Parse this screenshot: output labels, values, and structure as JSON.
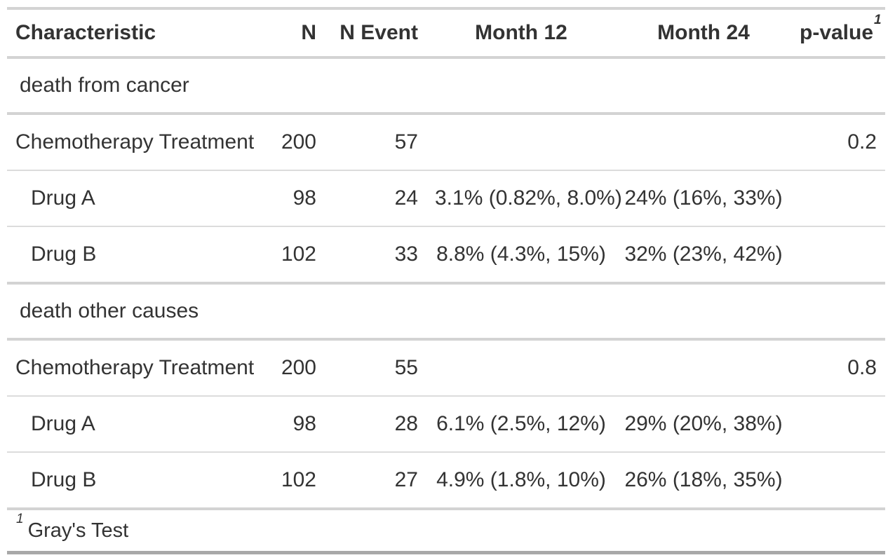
{
  "table": {
    "columns": {
      "characteristic": "Characteristic",
      "n": "N",
      "n_event": "N Event",
      "month12": "Month 12",
      "month24": "Month 24",
      "p_value": "p-value",
      "p_value_footnote_mark": "1"
    },
    "rows": [
      {
        "type": "group",
        "label": "death from cancer"
      },
      {
        "type": "level1",
        "label": "Chemotherapy Treatment",
        "n": "200",
        "n_event": "57",
        "month12": "",
        "month24": "",
        "p": "0.2"
      },
      {
        "type": "level2",
        "label": "Drug A",
        "n": "98",
        "n_event": "24",
        "month12": "3.1% (0.82%, 8.0%)",
        "month24": "24% (16%, 33%)",
        "p": ""
      },
      {
        "type": "level2",
        "label": "Drug B",
        "n": "102",
        "n_event": "33",
        "month12": "8.8% (4.3%, 15%)",
        "month24": "32% (23%, 42%)",
        "p": ""
      },
      {
        "type": "group",
        "label": "death other causes"
      },
      {
        "type": "level1",
        "label": "Chemotherapy Treatment",
        "n": "200",
        "n_event": "55",
        "month12": "",
        "month24": "",
        "p": "0.8"
      },
      {
        "type": "level2",
        "label": "Drug A",
        "n": "98",
        "n_event": "28",
        "month12": "6.1% (2.5%, 12%)",
        "month24": "29% (20%, 38%)",
        "p": ""
      },
      {
        "type": "level2",
        "label": "Drug B",
        "n": "102",
        "n_event": "27",
        "month12": "4.9% (1.8%, 10%)",
        "month24": "26% (18%, 35%)",
        "p": ""
      }
    ],
    "footnote": {
      "mark": "1",
      "text": "Gray's Test"
    }
  },
  "colors": {
    "text": "#333333",
    "border_light": "#d3d3d3",
    "border_row": "#dcdcdc",
    "border_bottom": "#a8a8a8",
    "background": "#ffffff"
  }
}
